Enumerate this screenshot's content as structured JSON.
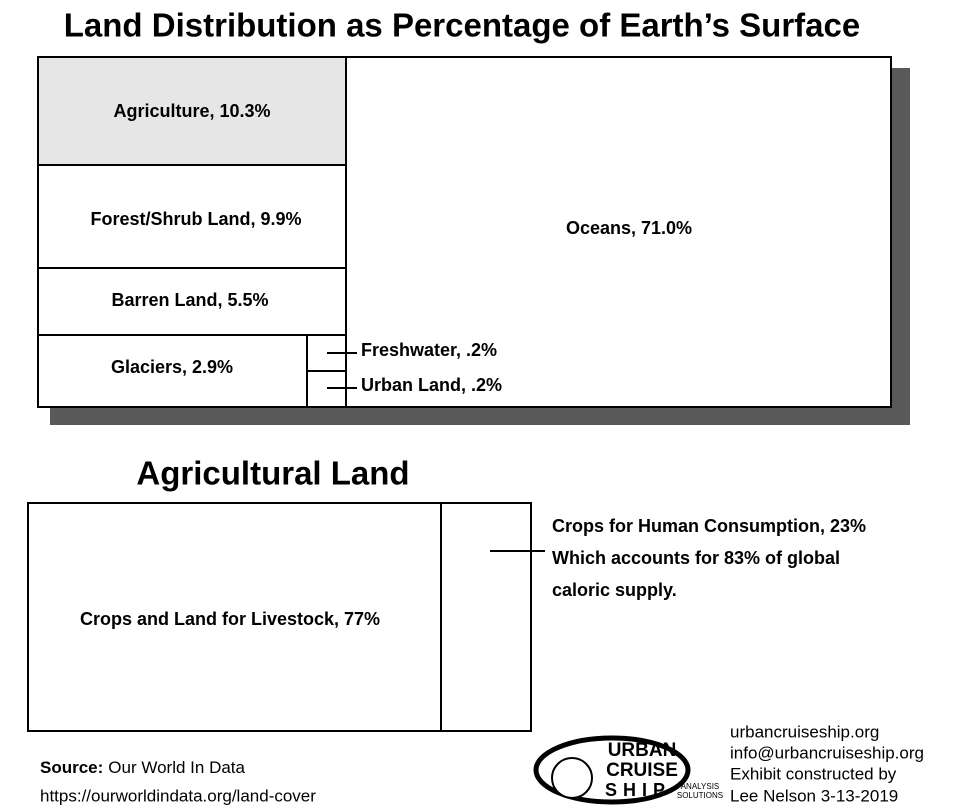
{
  "title": "Land Distribution as Percentage of Earth’s Surface",
  "land": {
    "cells": [
      "Agriculture, 10.3%",
      "Forest/Shrub Land, 9.9%",
      "Barren Land, 5.5%",
      "Glaciers, 2.9%",
      "Oceans, 71.0%"
    ],
    "callouts": [
      "Freshwater, .2%",
      "Urban Land, .2%"
    ]
  },
  "agricultural": {
    "title": "Agricultural Land",
    "cells": [
      "Crops and Land for Livestock, 77%"
    ],
    "annotation": [
      "Crops for Human Consumption, 23%",
      "Which accounts for 83% of global",
      "caloric supply."
    ]
  },
  "source": {
    "label": "Source:",
    "name": "Our World In Data",
    "url": "https://ourworldindata.org/land-cover"
  },
  "logo": {
    "words": [
      "URBAN",
      "CRUISE",
      "SHIP"
    ],
    "tagline": [
      "ANALYSIS",
      "SOLUTIONS"
    ]
  },
  "contact": [
    "urbancruiseship.org",
    "info@urbancruiseship.org",
    "Exhibit constructed by",
    "Lee Nelson 3-13-2019"
  ]
}
